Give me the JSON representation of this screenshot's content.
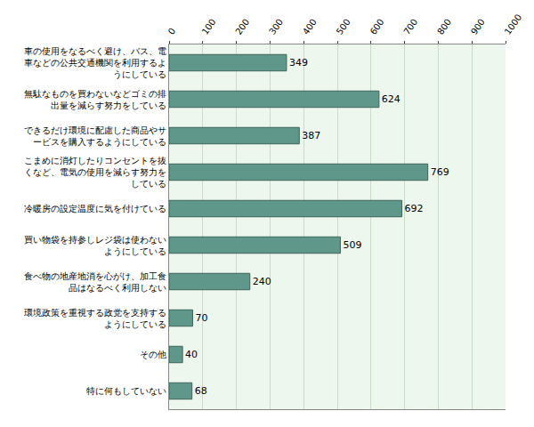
{
  "chart_data": {
    "type": "bar",
    "orientation": "horizontal",
    "categories": [
      "車の使用をなるべく避け、バス、電車などの公共交通機関を利用するようにしている",
      "無駄なものを買わないなどゴミの排出量を減らす努力をしている",
      "できるだけ環境に配慮した商品やサービスを購入するようにしている",
      "こまめに消灯したりコンセントを抜くなど、電気の使用を減らす努力をしている",
      "冷暖房の設定温度に気を付けている",
      "買い物袋を持参しレジ袋は使わないようにしている",
      "食べ物の地産地消を心がけ、加工食品はなるべく利用しない",
      "環境政策を重視する政党を支持するようにしている",
      "その他",
      "特に何もしていない"
    ],
    "values": [
      349,
      624,
      387,
      769,
      692,
      509,
      240,
      70,
      40,
      68
    ],
    "color": "#5f978a",
    "xlim": [
      0,
      1000
    ],
    "xticks": [
      0,
      100,
      200,
      300,
      400,
      500,
      600,
      700,
      800,
      900,
      1000
    ],
    "grid": true,
    "data_labels": true
  }
}
